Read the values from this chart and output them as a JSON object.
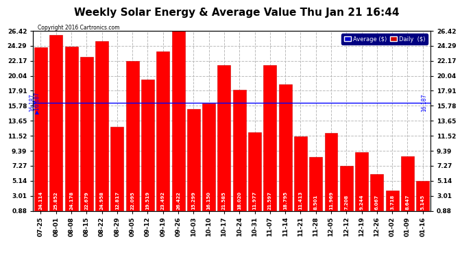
{
  "title": "Weekly Solar Energy & Average Value Thu Jan 21 16:44",
  "copyright": "Copyright 2016 Cartronics.com",
  "categories": [
    "07-25",
    "08-01",
    "08-08",
    "08-15",
    "08-22",
    "08-29",
    "09-05",
    "09-12",
    "09-19",
    "09-26",
    "10-03",
    "10-10",
    "10-17",
    "10-24",
    "10-31",
    "11-07",
    "11-14",
    "11-21",
    "11-28",
    "12-05",
    "12-12",
    "12-19",
    "12-26",
    "01-02",
    "01-09",
    "01-16"
  ],
  "values": [
    24.114,
    25.852,
    24.178,
    22.679,
    24.958,
    12.817,
    22.095,
    19.519,
    23.492,
    26.422,
    15.299,
    16.15,
    21.585,
    18.02,
    11.977,
    21.597,
    18.795,
    11.413,
    8.501,
    11.969,
    7.208,
    9.244,
    6.067,
    3.718,
    8.647,
    5.145
  ],
  "average_value": 16.187,
  "ylim": [
    0.88,
    26.42
  ],
  "yticks": [
    0.88,
    3.01,
    5.14,
    7.27,
    9.39,
    11.52,
    13.65,
    15.78,
    17.91,
    20.04,
    22.17,
    24.29,
    26.42
  ],
  "bar_color": "#FF0000",
  "bar_edge_color": "#CC0000",
  "average_line_color": "#0000FF",
  "background_color": "#FFFFFF",
  "grid_color": "#BBBBBB",
  "title_fontsize": 11,
  "tick_fontsize": 6.5,
  "value_label_color": "#FFFFFF",
  "legend_avg_bg": "#0000CC",
  "legend_daily_bg": "#CC0000"
}
